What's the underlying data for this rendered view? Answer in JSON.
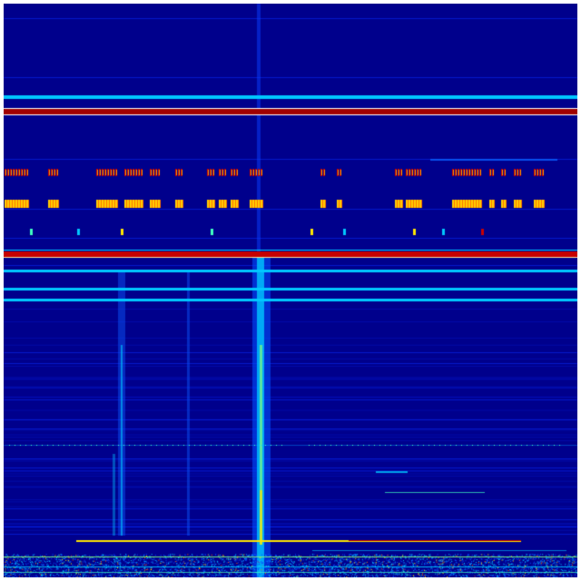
{
  "image": {
    "kind": "spectrogram heatmap",
    "colormap": "jet",
    "colors": {
      "background": "#00008c",
      "faint_line": "#0a2cff",
      "mid": "#00c8ff",
      "high": "#ffe600",
      "peak": "#c80000",
      "border": "#ffffff"
    }
  }
}
